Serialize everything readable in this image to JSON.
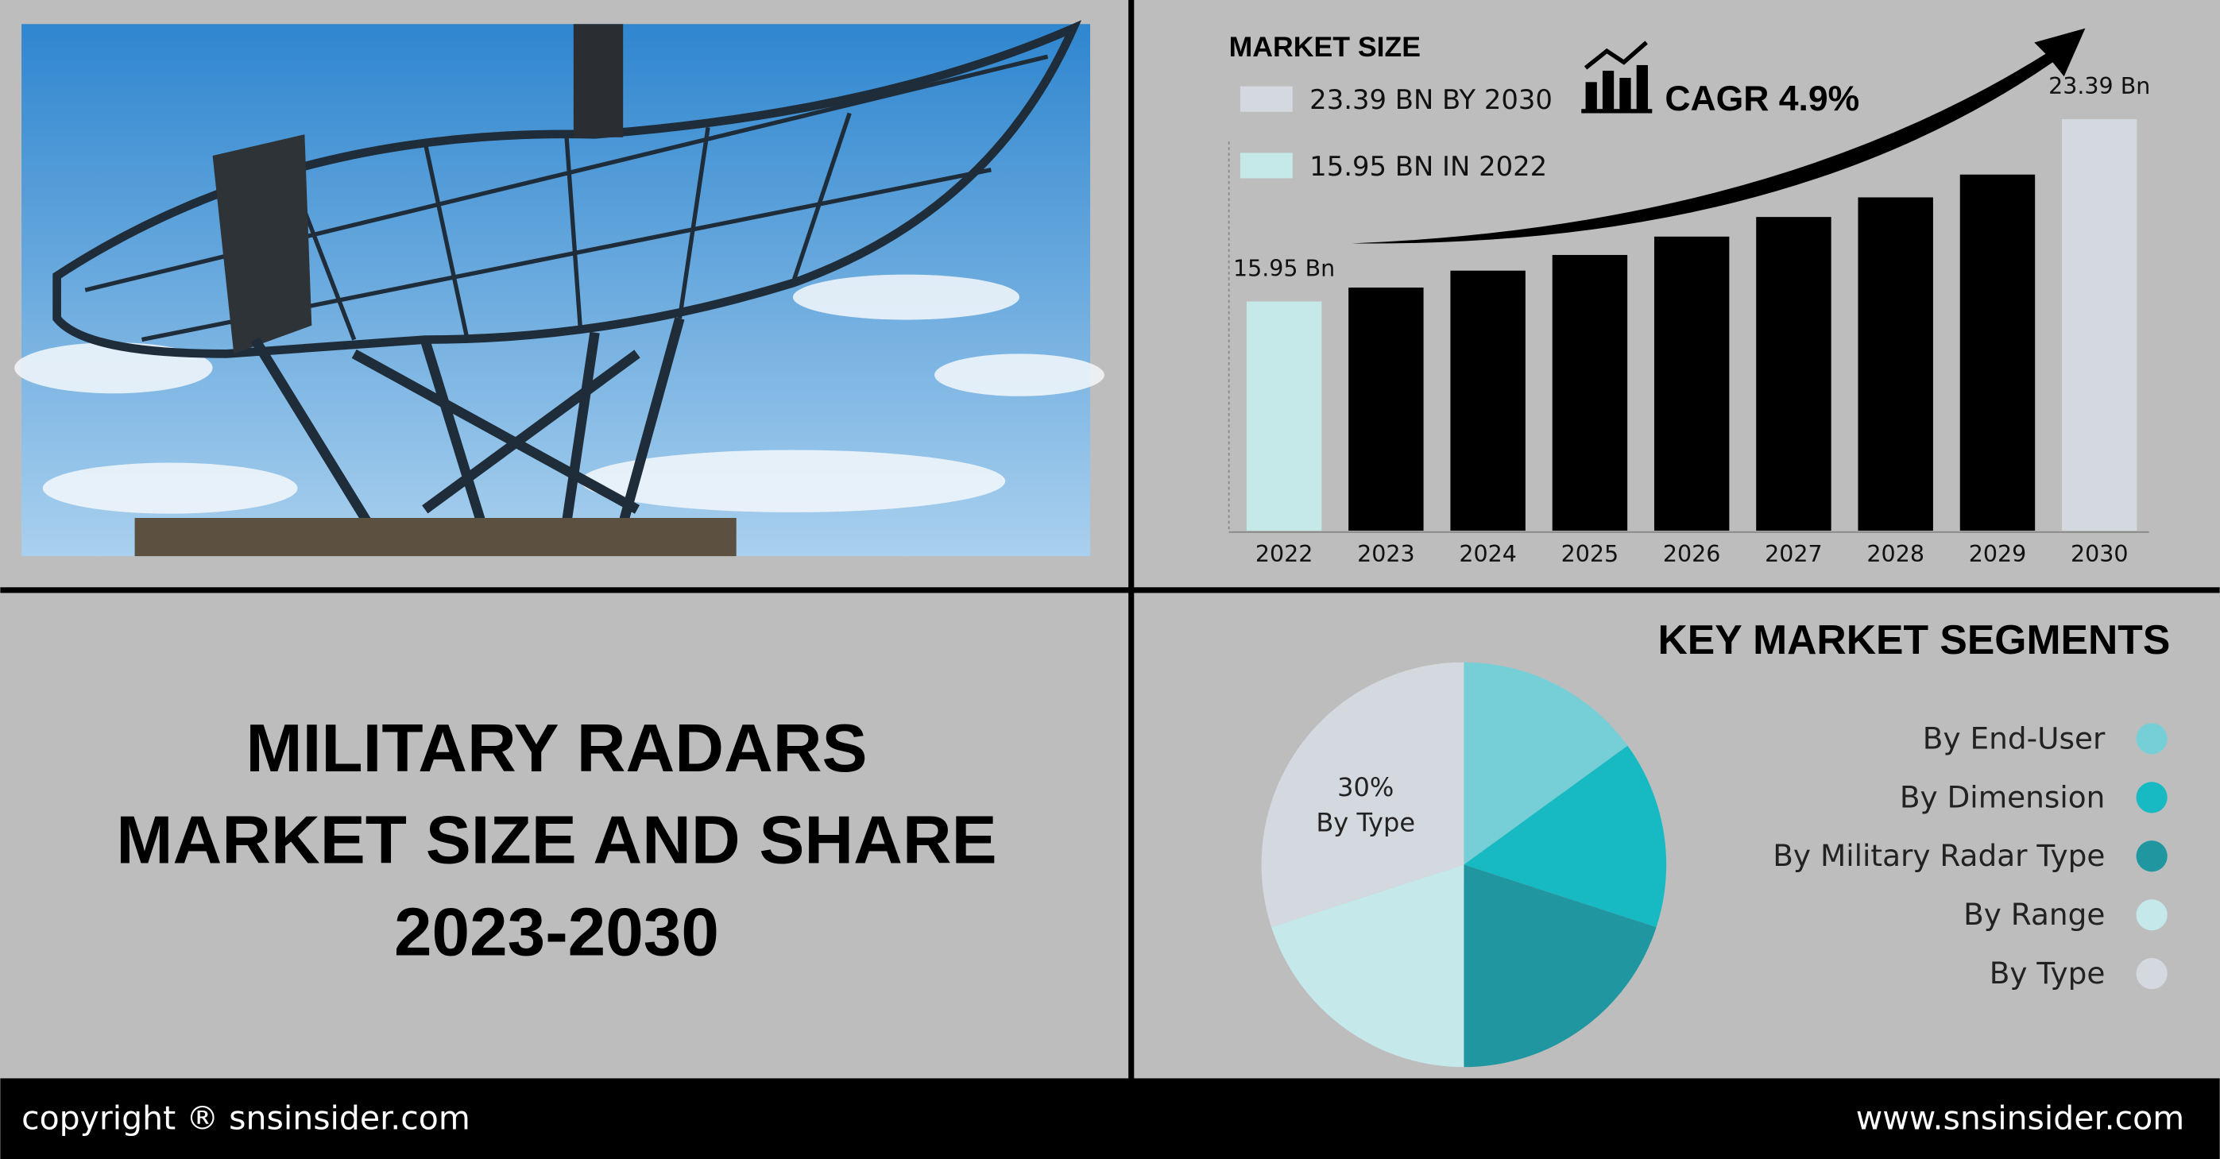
{
  "title": [
    "MILITARY RADARS",
    "MARKET SIZE AND SHARE",
    "2023-2030"
  ],
  "market_size": {
    "heading": "MARKET SIZE",
    "items": [
      "23.39 BN BY 2030",
      "15.95 BN IN 2022"
    ],
    "cagr": "CAGR 4.9%"
  },
  "segments_heading": "KEY MARKET SEGMENTS",
  "footer": {
    "left": "copyright ® snsinsider.com",
    "right": "www.snsinsider.com"
  },
  "chart_data": [
    {
      "type": "bar",
      "categories": [
        "2022",
        "2023",
        "2024",
        "2025",
        "2026",
        "2027",
        "2028",
        "2029",
        "2030"
      ],
      "values": [
        15.95,
        16.52,
        17.21,
        17.85,
        18.6,
        19.4,
        20.2,
        21.13,
        23.39
      ],
      "value_labels": [
        "15.95 Bn",
        null,
        null,
        null,
        null,
        null,
        null,
        null,
        "23.39 Bn"
      ],
      "colors": [
        "#c5e8e8",
        "#000000",
        "#000000",
        "#000000",
        "#000000",
        "#000000",
        "#000000",
        "#000000",
        "#d3d9df"
      ],
      "ylim": [
        6.6,
        24.5
      ]
    },
    {
      "type": "pie",
      "categories": [
        "By End-User",
        "By Dimension",
        "By Military Radar Type",
        "By Range",
        "By Type"
      ],
      "values": [
        15,
        15,
        20,
        20,
        30
      ],
      "value_labels": [
        null,
        null,
        null,
        null,
        "30%"
      ],
      "colors": [
        "#76cfd6",
        "#17b9c3",
        "#1f96a0",
        "#c5e8ea",
        "#d3d9df"
      ]
    }
  ]
}
